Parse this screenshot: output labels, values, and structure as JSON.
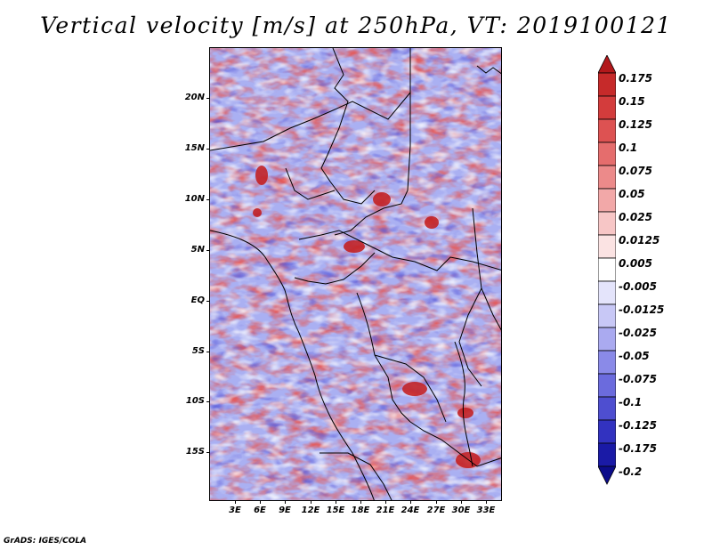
{
  "title": "Vertical velocity [m/s] at 250hPa, VT: 2019100121",
  "footer": "GrADS: IGES/COLA",
  "map": {
    "lat_range": [
      -20,
      25
    ],
    "lon_range": [
      0,
      35
    ],
    "lat_ticks": [
      "20N",
      "15N",
      "10N",
      "5N",
      "EQ",
      "5S",
      "10S",
      "15S"
    ],
    "lon_ticks": [
      "3E",
      "6E",
      "9E",
      "12E",
      "15E",
      "18E",
      "21E",
      "24E",
      "27E",
      "30E",
      "33E"
    ]
  },
  "colorbar": {
    "labels": [
      "0.175",
      "0.15",
      "0.125",
      "0.1",
      "0.075",
      "0.05",
      "0.025",
      "0.0125",
      "0.005",
      "-0.005",
      "-0.0125",
      "-0.025",
      "-0.05",
      "-0.075",
      "-0.1",
      "-0.125",
      "-0.175",
      "-0.2"
    ],
    "colors": [
      "#b2181b",
      "#c62a2a",
      "#d33c3c",
      "#dd5252",
      "#e56d6d",
      "#ec8a8a",
      "#f2a8a8",
      "#f7c6c6",
      "#fbe3e3",
      "#ffffff",
      "#e4e4fb",
      "#c8c8f6",
      "#aaaaf0",
      "#8a8ae8",
      "#6b6bdd",
      "#4e4ed0",
      "#3232c0",
      "#1a1aa6",
      "#0c0c8a"
    ]
  }
}
